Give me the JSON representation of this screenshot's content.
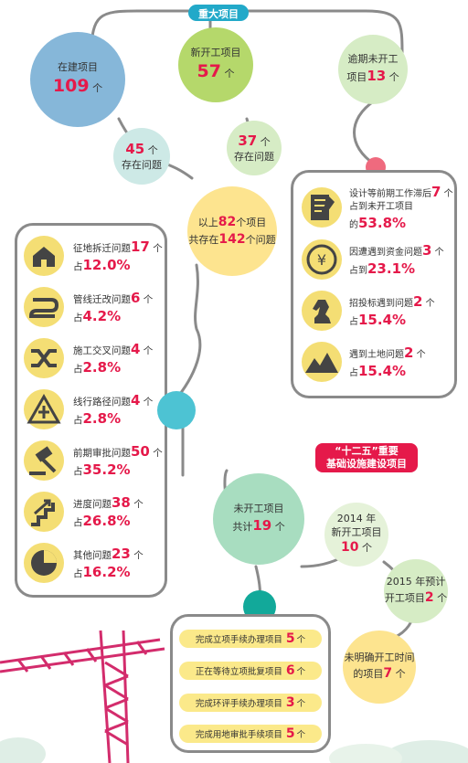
{
  "header_tag": "重大项目",
  "circles": {
    "under_construction": {
      "label": "在建项目",
      "num": "109",
      "unit": "个"
    },
    "new_start": {
      "label": "新开工项目",
      "num": "57",
      "unit": "个"
    },
    "overdue": {
      "label": "逾期未开工",
      "label2": "项目",
      "num": "13",
      "unit": "个"
    },
    "issues45": {
      "num": "45",
      "unit": "个",
      "label": "存在问题"
    },
    "issues37": {
      "num": "37",
      "unit": "个",
      "label": "存在问题"
    },
    "total": {
      "pre": "以上",
      "num": "82",
      "mid": "个项目",
      "pre2": "共存在",
      "num2": "142",
      "post2": "个问题"
    }
  },
  "left_panel": [
    {
      "icon": "house-icon",
      "text": "征地拆迁问题",
      "count": "17",
      "unit": "个",
      "pct_pre": "占",
      "pct": "12.0%"
    },
    {
      "icon": "pipe-icon",
      "text": "管线迁改问题",
      "count": "6",
      "unit": "个",
      "pct_pre": "占",
      "pct": "4.2%"
    },
    {
      "icon": "crossing-icon",
      "text": "施工交叉问题",
      "count": "4",
      "unit": "个",
      "pct_pre": "占",
      "pct": "2.8%"
    },
    {
      "icon": "road-sign-icon",
      "text": "线行路径问题",
      "count": "4",
      "unit": "个",
      "pct_pre": "占",
      "pct": "2.8%"
    },
    {
      "icon": "gavel-icon",
      "text": "前期审批问题",
      "count": "50",
      "unit": "个",
      "pct_pre": "占",
      "pct": "35.2%"
    },
    {
      "icon": "stairs-arrow-icon",
      "text": "进度问题",
      "count": "38",
      "unit": "个",
      "pct_pre": "占",
      "pct": "26.8%"
    },
    {
      "icon": "pie-icon",
      "text": "其他问题",
      "count": "23",
      "unit": "个",
      "pct_pre": "占",
      "pct": "16.2%"
    }
  ],
  "right_panel": [
    {
      "icon": "notepad-icon",
      "line1": "设计等前期工作滞后",
      "count": "7",
      "unit": "个",
      "line2": "占到未开工项目",
      "pct_pre": "的",
      "pct": "53.8%"
    },
    {
      "icon": "yen-coin-icon",
      "line1": "因遭遇到资金问题",
      "count": "3",
      "unit": "个",
      "line2": "",
      "pct_pre": "占到",
      "pct": "23.1%"
    },
    {
      "icon": "chess-knight-icon",
      "line1": "招投标遇到问题",
      "count": "2",
      "unit": "个",
      "line2": "",
      "pct_pre": "占",
      "pct": "15.4%"
    },
    {
      "icon": "mountain-icon",
      "line1": "遇到土地问题",
      "count": "2",
      "unit": "个",
      "line2": "",
      "pct_pre": "占",
      "pct": "15.4%"
    }
  ],
  "infra_tag": {
    "line1": "“十二五”重要",
    "line2": "基础设施建设项目"
  },
  "infra": {
    "unstarted": {
      "label": "未开工项目",
      "pre": "共计",
      "num": "19",
      "unit": "个"
    },
    "y2014": {
      "label1": "2014 年",
      "label2": "新开工项目",
      "num": "10",
      "unit": "个"
    },
    "y2015": {
      "label1": "2015 年预计",
      "label2": "开工项目",
      "num": "2",
      "unit": "个"
    },
    "unclear": {
      "label1": "未明确开工时间",
      "label2": "的项目",
      "num": "7",
      "unit": "个"
    }
  },
  "pills": [
    {
      "text": "完成立项手续办理项目",
      "num": "5",
      "unit": "个"
    },
    {
      "text": "正在等待立项批复项目",
      "num": "6",
      "unit": "个"
    },
    {
      "text": "完成环评手续办理项目",
      "num": "3",
      "unit": "个"
    },
    {
      "text": "完成用地审批手续项目",
      "num": "5",
      "unit": "个"
    }
  ],
  "colors": {
    "accent_red": "#e5194a",
    "blue_circle": "#86b7d9",
    "green_circle": "#b5d86b",
    "teal": "#22a9c9",
    "yellow": "#fbe98a"
  }
}
